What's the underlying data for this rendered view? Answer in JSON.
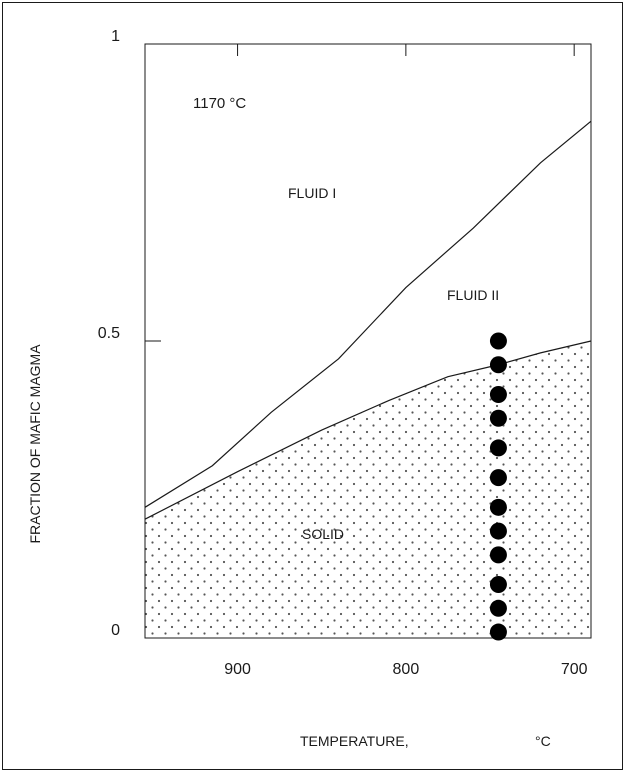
{
  "chart_data": {
    "type": "line",
    "title": "",
    "xlabel": "TEMPERATURE,",
    "xlabel_unit": "°C",
    "ylabel": "FRACTION OF MAFIC MAGMA",
    "xlim": [
      955,
      690
    ],
    "ylim": [
      0,
      1
    ],
    "x_axis_reversed": true,
    "x_ticks": [
      900,
      800,
      700
    ],
    "x_tick_labels": [
      "900",
      "800",
      "700"
    ],
    "y_ticks": [
      0,
      0.5,
      1
    ],
    "y_tick_labels": [
      "0",
      "0.5",
      "1"
    ],
    "grid": false,
    "annotations": [
      "1170  °C",
      "FLUID I",
      "FLUID II",
      "SOLID"
    ],
    "series": [
      {
        "x": [
          955,
          915,
          880,
          840,
          800,
          760,
          720,
          690
        ],
        "y": [
          0.22,
          0.29,
          0.38,
          0.47,
          0.59,
          0.69,
          0.8,
          0.87
        ]
      },
      {
        "x": [
          955,
          900,
          850,
          810,
          775,
          745,
          720,
          690
        ],
        "y": [
          0.2,
          0.28,
          0.35,
          0.4,
          0.44,
          0.46,
          0.48,
          0.5
        ]
      }
    ],
    "points": {
      "x": [
        745,
        745,
        745,
        745,
        745,
        745,
        745,
        745,
        745,
        745,
        745,
        745
      ],
      "y": [
        0.5,
        0.46,
        0.41,
        0.37,
        0.32,
        0.27,
        0.22,
        0.18,
        0.14,
        0.09,
        0.05,
        0.01
      ]
    },
    "colors": {
      "line": "#1a1a1a",
      "points": "#000000",
      "solid_stipple": "#555555"
    }
  }
}
